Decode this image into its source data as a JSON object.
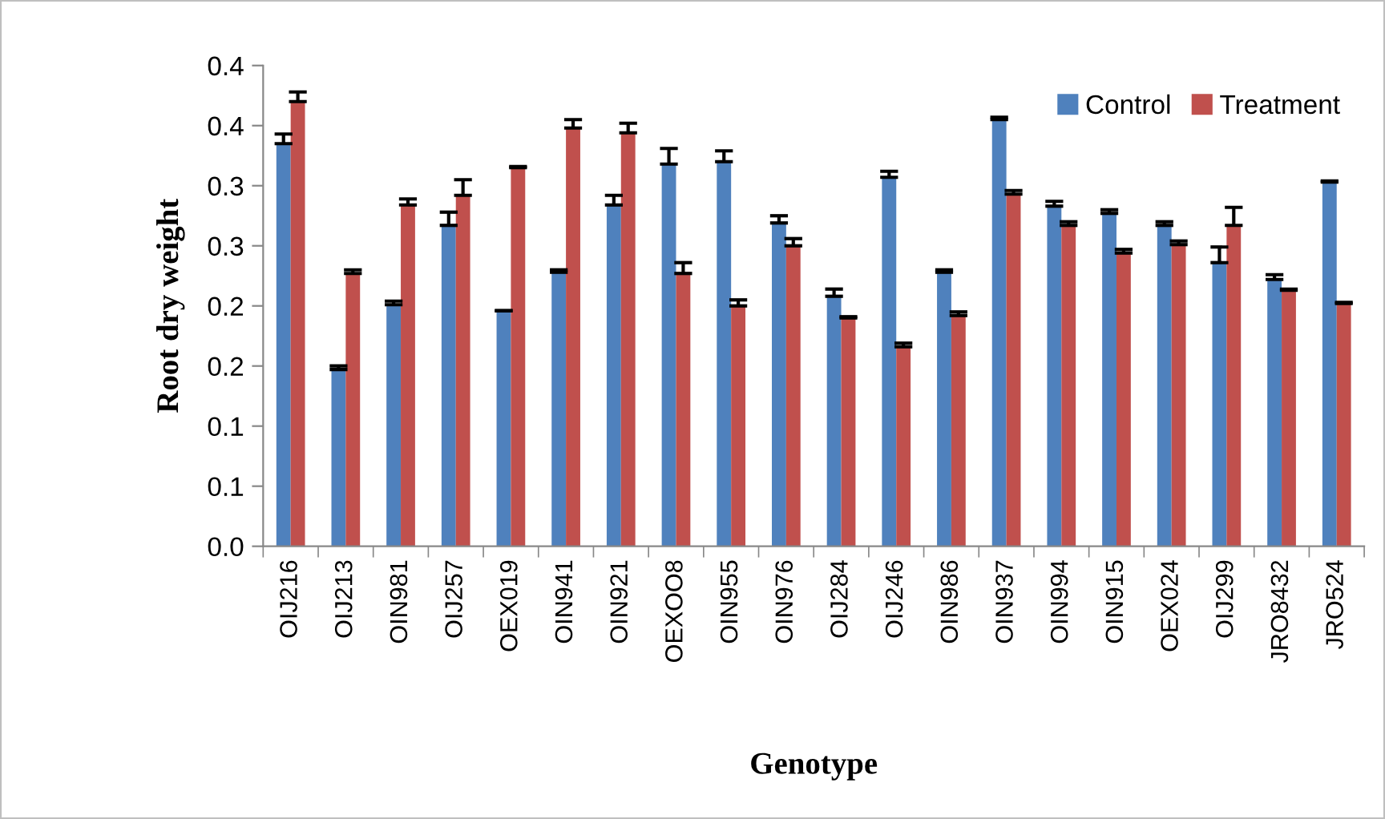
{
  "chart_data": {
    "type": "bar",
    "xlabel": "Genotype",
    "ylabel": "Root dry weight",
    "categories": [
      "OIJ216",
      "OIJ213",
      "OIN981",
      "OIJ257",
      "OEX019",
      "OIN941",
      "OIN921",
      "OEXOO8",
      "OIN955",
      "OIN976",
      "OIJ284",
      "OIJ246",
      "OIN986",
      "OIN937",
      "OIN994",
      "OIN915",
      "OEX024",
      "OIJ299",
      "JRO8432",
      "JRO524"
    ],
    "series": [
      {
        "name": "Control",
        "color": "#4f81bd",
        "values": [
          0.335,
          0.147,
          0.201,
          0.267,
          0.196,
          0.228,
          0.284,
          0.318,
          0.32,
          0.269,
          0.208,
          0.307,
          0.228,
          0.355,
          0.283,
          0.277,
          0.267,
          0.236,
          0.222,
          0.303
        ],
        "errors": [
          0.008,
          0.003,
          0.003,
          0.011,
          0,
          0.002,
          0.008,
          0.013,
          0.009,
          0.006,
          0.006,
          0.005,
          0.002,
          0.002,
          0.004,
          0.003,
          0.003,
          0.013,
          0.004,
          0.001
        ]
      },
      {
        "name": "Treatment",
        "color": "#c0504d",
        "values": [
          0.37,
          0.227,
          0.284,
          0.292,
          0.315,
          0.348,
          0.344,
          0.227,
          0.2,
          0.25,
          0.19,
          0.166,
          0.192,
          0.293,
          0.267,
          0.244,
          0.251,
          0.267,
          0.213,
          0.202
        ],
        "errors": [
          0.008,
          0.003,
          0.005,
          0.013,
          0.001,
          0.007,
          0.008,
          0.009,
          0.005,
          0.006,
          0.001,
          0.003,
          0.003,
          0.003,
          0.003,
          0.003,
          0.003,
          0.015,
          0.001,
          0.001
        ]
      }
    ],
    "ylim": [
      0,
      0.4
    ],
    "yticks": [
      {
        "value": 0,
        "label": "0.0"
      },
      {
        "value": 0.05,
        "label": "0.1"
      },
      {
        "value": 0.1,
        "label": "0.1"
      },
      {
        "value": 0.15,
        "label": "0.2"
      },
      {
        "value": 0.2,
        "label": "0.2"
      },
      {
        "value": 0.25,
        "label": "0.3"
      },
      {
        "value": 0.3,
        "label": "0.3"
      },
      {
        "value": 0.35,
        "label": "0.4"
      },
      {
        "value": 0.4,
        "label": "0.4"
      }
    ],
    "legend": "top right"
  }
}
